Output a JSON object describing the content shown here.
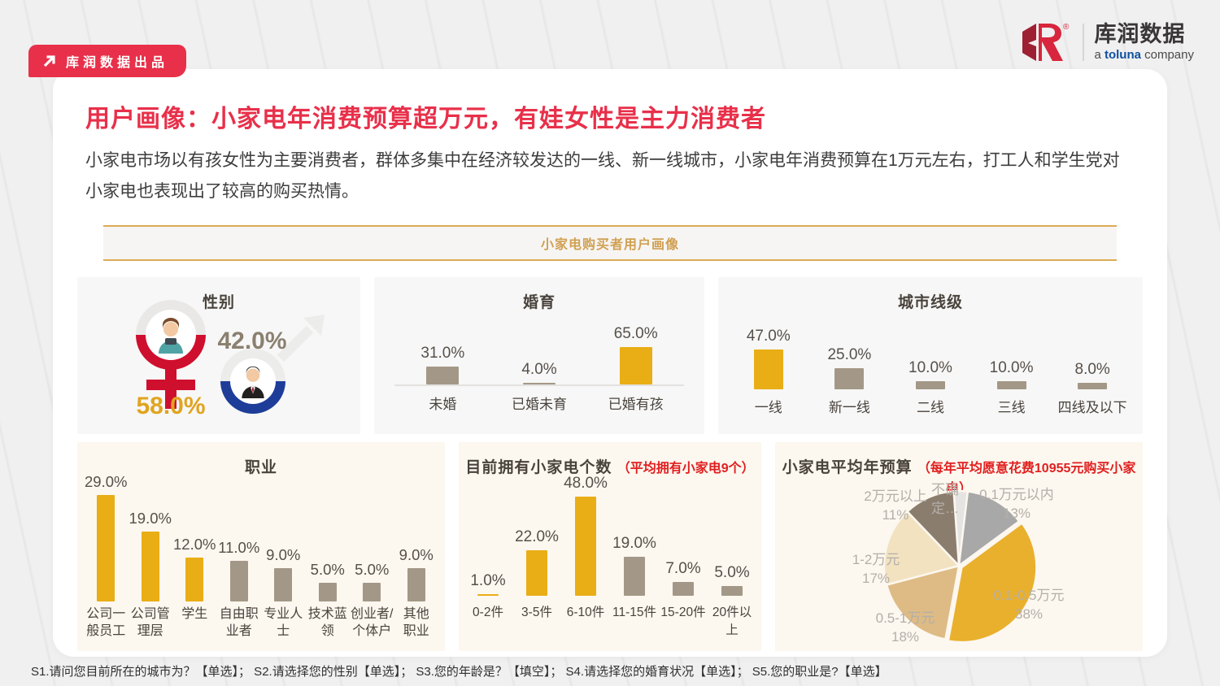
{
  "page": {
    "badge": "库润数据出品",
    "logo": {
      "brand": "库润数据",
      "sub_prefix": "a ",
      "sub_brand": "toluna",
      "sub_suffix": " company",
      "registered": "®"
    },
    "title": "用户画像：小家电年消费预算超万元，有娃女性是主力消费者",
    "subtitle": "小家电市场以有孩女性为主要消费者，群体多集中在经济较发达的一线、新一线城市，小家电年消费预算在1万元左右，打工人和学生党对小家电也表现出了较高的购买热情。",
    "banner": "小家电购买者用户画像",
    "footnote": "S1.请问您目前所在的城市为？【单选】； S2.请选择您的性别【单选】； S3.您的年龄是？【填空】； S4.请选择您的婚育状况【单选】； S5.您的职业是?【单选】"
  },
  "colors": {
    "accent_red": "#e8304a",
    "note_red": "#e01f1f",
    "gold": "#e9ad16",
    "taupe": "#a39887",
    "female_red": "#cf0f2e",
    "male_blue": "#1d3d99",
    "banner_gold": "#dcab55"
  },
  "chart_data": [
    {
      "id": "gender",
      "type": "pictogram",
      "title": "性别",
      "items": [
        {
          "label": "女性",
          "value": 58.0,
          "display": "58.0%",
          "color": "#cf0f2e"
        },
        {
          "label": "男性",
          "value": 42.0,
          "display": "42.0%",
          "color": "#1d3d99"
        }
      ]
    },
    {
      "id": "marriage",
      "type": "bar",
      "title": "婚育",
      "categories": [
        "未婚",
        "已婚未育",
        "已婚有孩"
      ],
      "values": [
        31.0,
        4.0,
        65.0
      ],
      "labels": [
        "31.0%",
        "4.0%",
        "65.0%"
      ],
      "bar_colors": [
        "#a39887",
        "#a39887",
        "#e9ad16"
      ],
      "ylim": [
        0,
        70
      ],
      "baseline": true
    },
    {
      "id": "city",
      "type": "bar",
      "title": "城市线级",
      "categories": [
        "一线",
        "新一线",
        "二线",
        "三线",
        "四线及以下"
      ],
      "values": [
        47.0,
        25.0,
        10.0,
        10.0,
        8.0
      ],
      "labels": [
        "47.0%",
        "25.0%",
        "10.0%",
        "10.0%",
        "8.0%"
      ],
      "bar_colors": [
        "#e9ad16",
        "#a39887",
        "#a39887",
        "#a39887",
        "#a39887"
      ],
      "ylim": [
        0,
        50
      ],
      "baseline": false
    },
    {
      "id": "occupation",
      "type": "bar",
      "title": "职业",
      "categories": [
        "公司一\n般员工",
        "公司管\n理层",
        "学生",
        "自由职\n业者",
        "专业人\n士",
        "技术蓝\n领",
        "创业者/\n个体户",
        "其他\n职业"
      ],
      "values": [
        29.0,
        19.0,
        12.0,
        11.0,
        9.0,
        5.0,
        5.0,
        9.0
      ],
      "labels": [
        "29.0%",
        "19.0%",
        "12.0%",
        "11.0%",
        "9.0%",
        "5.0%",
        "5.0%",
        "9.0%"
      ],
      "bar_colors": [
        "#e9ad16",
        "#e9ad16",
        "#e9ad16",
        "#a39887",
        "#a39887",
        "#a39887",
        "#a39887",
        "#a39887"
      ],
      "ylim": [
        0,
        32
      ],
      "baseline": false
    },
    {
      "id": "count",
      "type": "bar",
      "title_main": "目前拥有小家电个数",
      "title_note": "（平均拥有小家电9个）",
      "categories": [
        "0-2件",
        "3-5件",
        "6-10件",
        "11-15件",
        "15-20件",
        "20件以上"
      ],
      "values": [
        1.0,
        22.0,
        48.0,
        19.0,
        7.0,
        5.0
      ],
      "labels": [
        "1.0%",
        "22.0%",
        "48.0%",
        "19.0%",
        "7.0%",
        "5.0%"
      ],
      "bar_colors": [
        "#e9ad16",
        "#e9ad16",
        "#e9ad16",
        "#a39887",
        "#a39887",
        "#a39887"
      ],
      "ylim": [
        0,
        52
      ],
      "baseline": false
    },
    {
      "id": "budget",
      "type": "pie",
      "title_main": "小家电平均年预算",
      "title_note": "（每年平均愿意花费10955元购买小家电）",
      "start_angle": -4,
      "slices": [
        {
          "name": "不确定…",
          "value": 3,
          "pct_label": "",
          "color": "#e6e4e2"
        },
        {
          "name": "0.1万元以内",
          "value": 13,
          "pct_label": "13%",
          "color": "#a8a8a8"
        },
        {
          "name": "0.1-0.5万元",
          "value": 38,
          "pct_label": "38%",
          "color": "#e9b02e",
          "emphasis": true
        },
        {
          "name": "0.5-1万元",
          "value": 18,
          "pct_label": "18%",
          "color": "#debb85"
        },
        {
          "name": "1-2万元",
          "value": 17,
          "pct_label": "17%",
          "color": "#f2e2c0"
        },
        {
          "name": "2万元以上",
          "value": 11,
          "pct_label": "11%",
          "color": "#8b7d6d"
        }
      ]
    }
  ]
}
